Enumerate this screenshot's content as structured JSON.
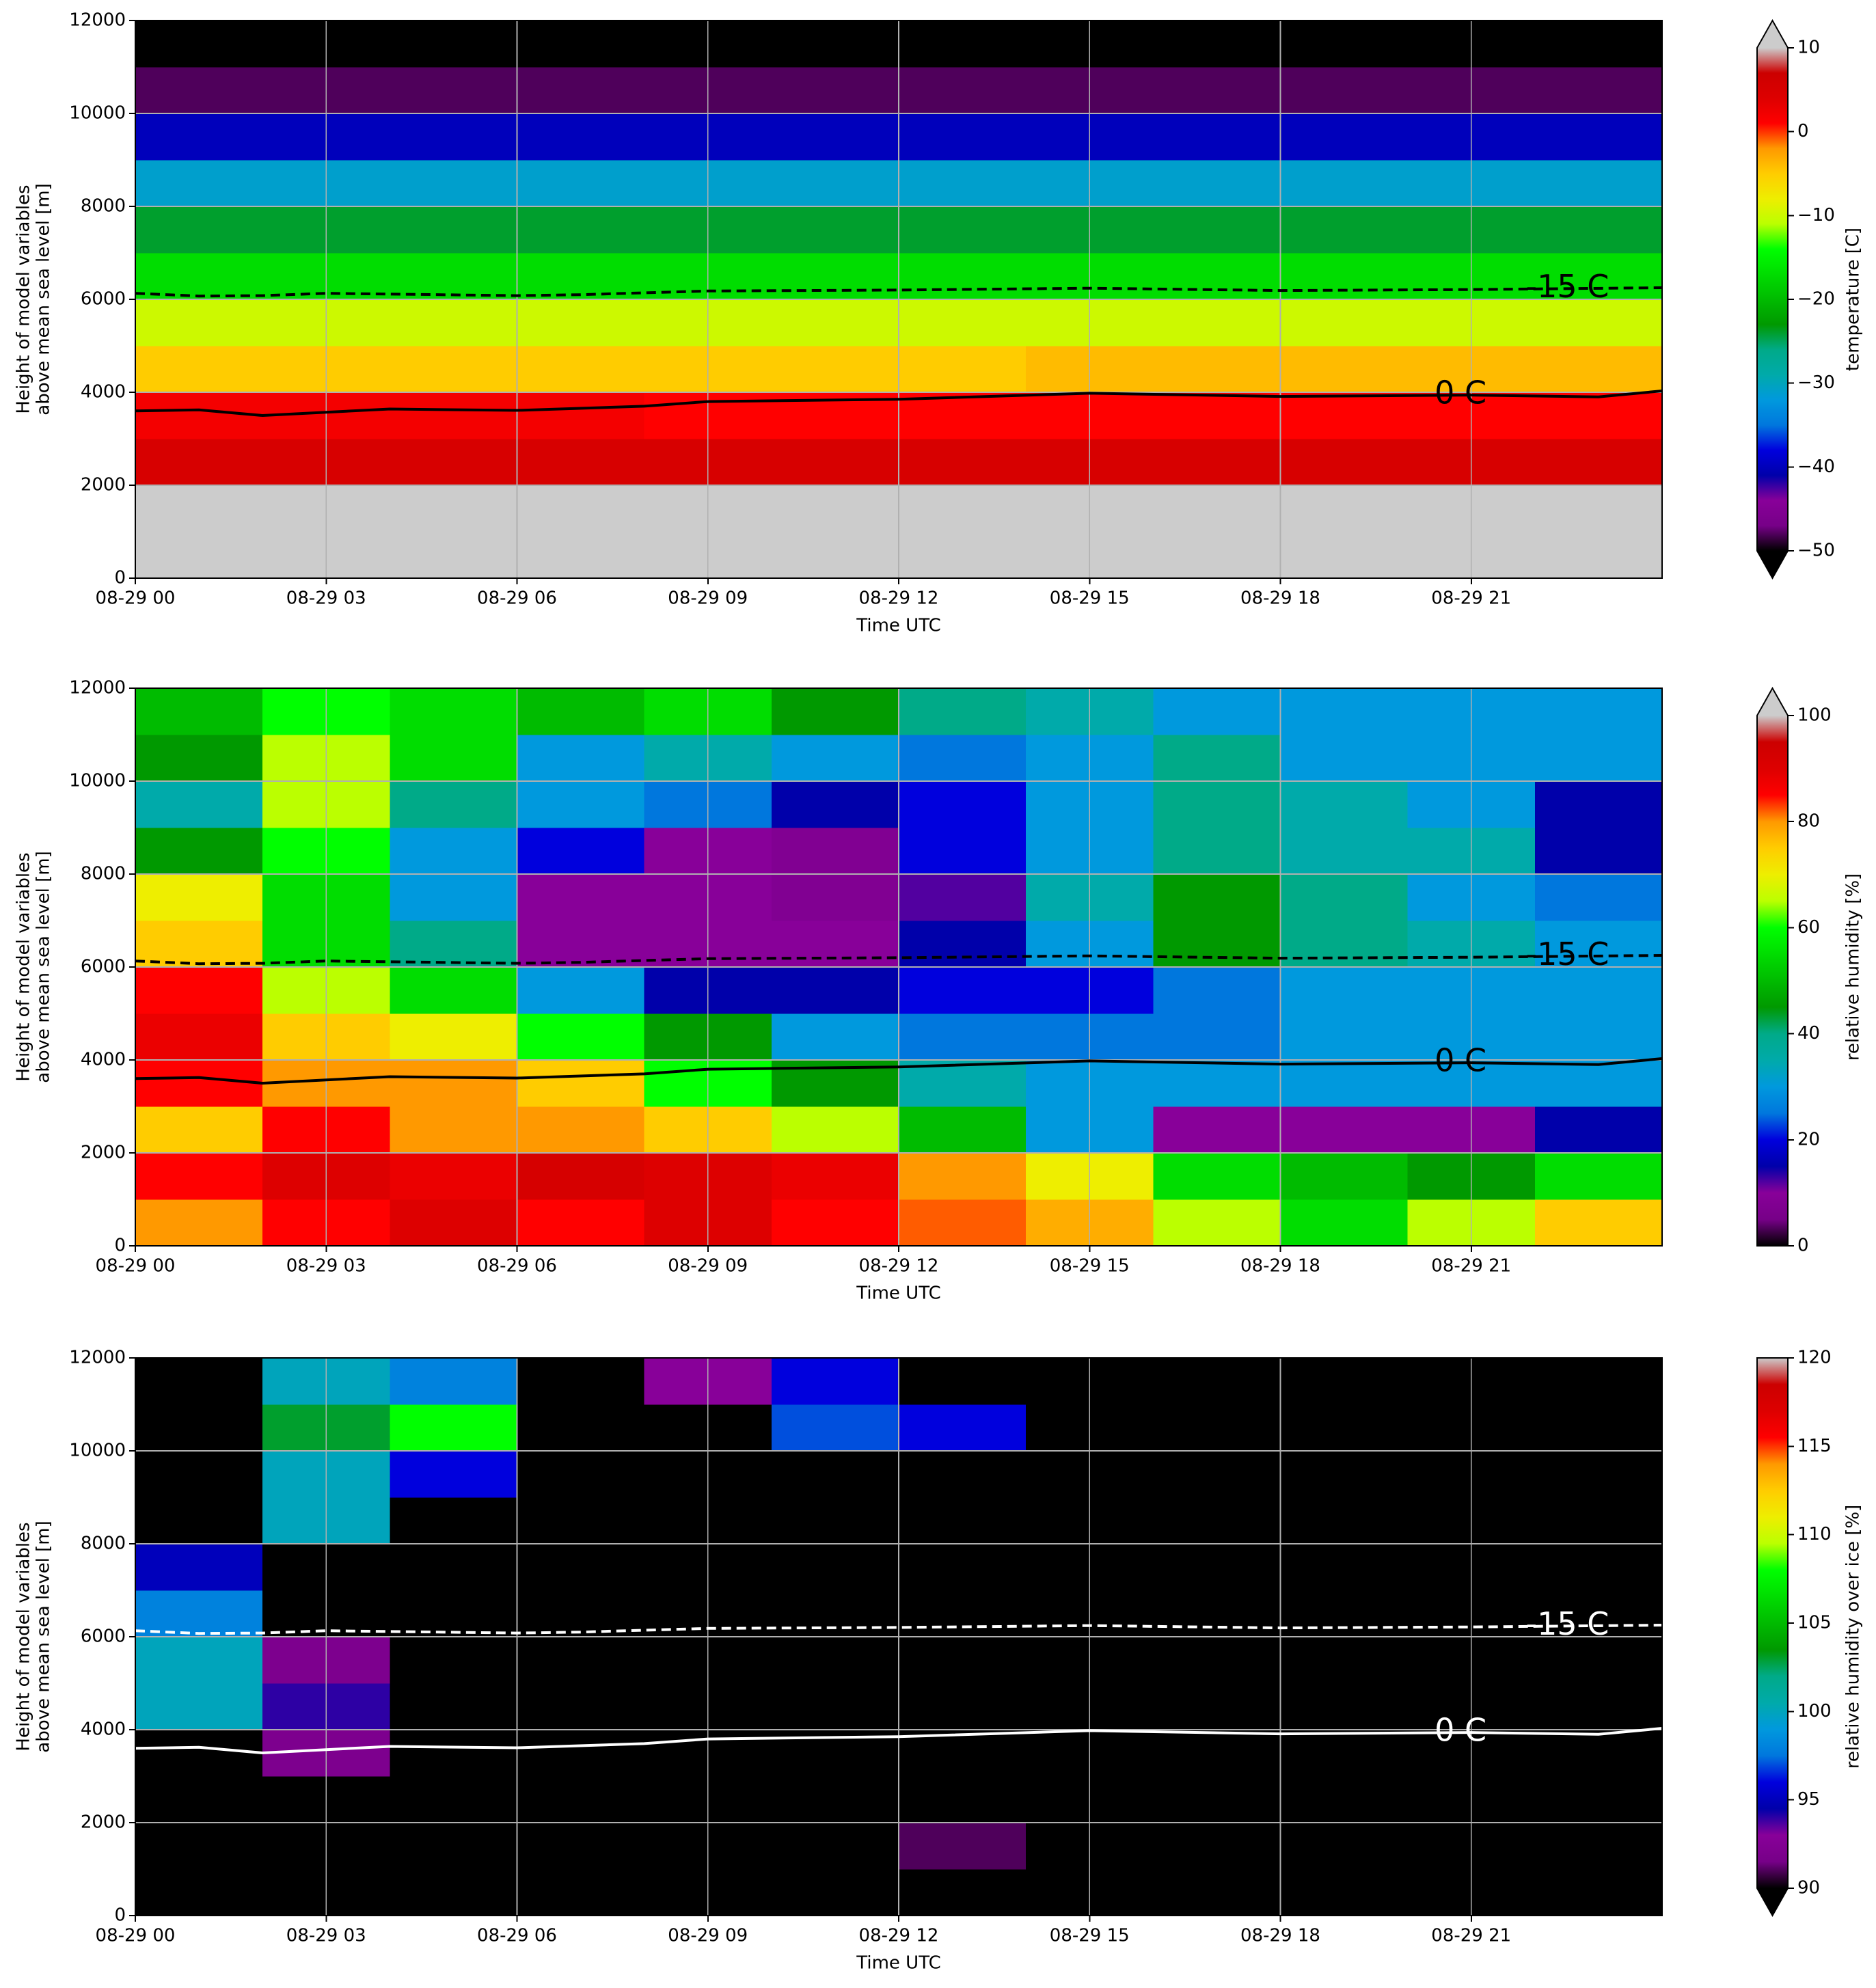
{
  "chart_data": [
    {
      "type": "heatmap",
      "xlim": [
        0,
        24
      ],
      "xticks": [
        {
          "value": 0,
          "label": "08-29 00"
        },
        {
          "value": 3,
          "label": "08-29 03"
        },
        {
          "value": 6,
          "label": "08-29 06"
        },
        {
          "value": 9,
          "label": "08-29 09"
        },
        {
          "value": 12,
          "label": "08-29 12"
        },
        {
          "value": 15,
          "label": "08-29 15"
        },
        {
          "value": 18,
          "label": "08-29 18"
        },
        {
          "value": 21,
          "label": "08-29 21"
        }
      ],
      "xlabel": "Time UTC",
      "ylim": [
        0,
        12000
      ],
      "yticks": [
        0,
        2000,
        4000,
        6000,
        8000,
        10000,
        12000
      ],
      "ylabel": [
        "Height of model variables",
        "above mean sea level [m]"
      ],
      "grid": true,
      "x": [
        1,
        3,
        5,
        7,
        9,
        11,
        13,
        15,
        17,
        19,
        21,
        23
      ],
      "y": [
        500,
        1500,
        2500,
        3500,
        4500,
        5500,
        6500,
        7500,
        8500,
        9500,
        10500,
        11500
      ],
      "z": [
        [
          15,
          15,
          15,
          15,
          15,
          15,
          15,
          15,
          15,
          15,
          15,
          15
        ],
        [
          14,
          14,
          14,
          14,
          13,
          12,
          12,
          13,
          14,
          14,
          14,
          13
        ],
        [
          5,
          5,
          5,
          5,
          5,
          5,
          5,
          5,
          5,
          5,
          5,
          5
        ],
        [
          2,
          2,
          2,
          2,
          1,
          1,
          1,
          1,
          1,
          1,
          1,
          1
        ],
        [
          -5,
          -5,
          -5,
          -5,
          -5,
          -5,
          -5,
          -4,
          -4,
          -4,
          -4,
          -4
        ],
        [
          -10,
          -10,
          -10,
          -10,
          -10,
          -10,
          -10,
          -10,
          -10,
          -10,
          -10,
          -10
        ],
        [
          -17,
          -17,
          -17,
          -17,
          -17,
          -17,
          -17,
          -17,
          -17,
          -17,
          -17,
          -17
        ],
        [
          -24,
          -24,
          -24,
          -24,
          -24,
          -24,
          -24,
          -24,
          -24,
          -24,
          -24,
          -24
        ],
        [
          -31,
          -31,
          -31,
          -31,
          -31,
          -31,
          -31,
          -31,
          -31,
          -31,
          -31,
          -31
        ],
        [
          -40,
          -40,
          -40,
          -40,
          -40,
          -40,
          -40,
          -40,
          -40,
          -40,
          -40,
          -40
        ],
        [
          -48,
          -48,
          -48,
          -48,
          -48,
          -48,
          -48,
          -48,
          -48,
          -48,
          -48,
          -48
        ],
        [
          -55,
          -55,
          -55,
          -55,
          -55,
          -55,
          -55,
          -55,
          -55,
          -55,
          -55,
          -55
        ]
      ],
      "colormap": "nipy_spectral",
      "clim": [
        -50,
        10
      ],
      "cticks": [
        {
          "value": -50,
          "label": "−50"
        },
        {
          "value": -40,
          "label": "−40"
        },
        {
          "value": -30,
          "label": "−30"
        },
        {
          "value": -20,
          "label": "−20"
        },
        {
          "value": -10,
          "label": "−10"
        },
        0,
        10
      ],
      "colorbar_label": "temperature [C]",
      "extend": "both",
      "over_color": "#cccccc",
      "under_color": "#000000",
      "contour_color": "#000000",
      "contours": [
        {
          "name": "0 C",
          "style": "solid",
          "x": [
            0,
            1,
            2,
            3,
            4,
            6,
            8,
            9,
            12,
            15,
            18,
            21,
            23,
            24
          ],
          "y": [
            3600,
            3620,
            3500,
            3570,
            3640,
            3610,
            3700,
            3800,
            3850,
            3980,
            3910,
            3940,
            3900,
            4030
          ]
        },
        {
          "name": "-15 C",
          "style": "dashed",
          "x": [
            0,
            1,
            2,
            3,
            6,
            7,
            9,
            12,
            15,
            18,
            21,
            24
          ],
          "y": [
            6130,
            6070,
            6080,
            6130,
            6080,
            6100,
            6180,
            6200,
            6240,
            6190,
            6210,
            6250
          ]
        }
      ]
    },
    {
      "type": "heatmap",
      "xlim": [
        0,
        24
      ],
      "xticks": [
        {
          "value": 0,
          "label": "08-29 00"
        },
        {
          "value": 3,
          "label": "08-29 03"
        },
        {
          "value": 6,
          "label": "08-29 06"
        },
        {
          "value": 9,
          "label": "08-29 09"
        },
        {
          "value": 12,
          "label": "08-29 12"
        },
        {
          "value": 15,
          "label": "08-29 15"
        },
        {
          "value": 18,
          "label": "08-29 18"
        },
        {
          "value": 21,
          "label": "08-29 21"
        }
      ],
      "xlabel": "Time UTC",
      "ylim": [
        0,
        12000
      ],
      "yticks": [
        0,
        2000,
        4000,
        6000,
        8000,
        10000,
        12000
      ],
      "ylabel": [
        "Height of model variables",
        "above mean sea level [m]"
      ],
      "grid": true,
      "x": [
        1,
        3,
        5,
        7,
        9,
        11,
        13,
        15,
        17,
        19,
        21,
        23
      ],
      "y": [
        500,
        1500,
        2500,
        3500,
        4500,
        5500,
        6500,
        7500,
        8500,
        9500,
        10500,
        11500
      ],
      "z": [
        [
          80,
          85,
          90,
          85,
          90,
          85,
          82,
          78,
          65,
          55,
          65,
          75
        ],
        [
          85,
          90,
          88,
          92,
          90,
          88,
          80,
          70,
          55,
          50,
          45,
          55
        ],
        [
          75,
          85,
          80,
          80,
          75,
          65,
          50,
          30,
          10,
          10,
          10,
          15
        ],
        [
          85,
          80,
          80,
          75,
          60,
          45,
          35,
          30,
          30,
          30,
          30,
          30
        ],
        [
          88,
          75,
          70,
          60,
          45,
          30,
          25,
          25,
          25,
          30,
          30,
          30
        ],
        [
          85,
          65,
          55,
          30,
          15,
          15,
          20,
          20,
          25,
          30,
          30,
          30
        ],
        [
          75,
          55,
          40,
          10,
          10,
          10,
          15,
          30,
          45,
          40,
          35,
          30
        ],
        [
          70,
          55,
          30,
          10,
          10,
          8,
          12,
          35,
          45,
          40,
          30,
          25
        ],
        [
          45,
          60,
          30,
          20,
          10,
          8,
          20,
          30,
          40,
          35,
          35,
          15
        ],
        [
          35,
          65,
          40,
          30,
          25,
          15,
          20,
          30,
          40,
          35,
          30,
          15
        ],
        [
          45,
          65,
          55,
          30,
          35,
          30,
          25,
          30,
          40,
          30,
          30,
          30
        ],
        [
          50,
          60,
          55,
          50,
          55,
          45,
          40,
          35,
          30,
          30,
          30,
          30
        ]
      ],
      "colormap": "nipy_spectral",
      "clim": [
        0,
        100
      ],
      "cticks": [
        0,
        20,
        40,
        60,
        80,
        100
      ],
      "colorbar_label": "relative humidity [%]",
      "extend": "max",
      "over_color": "#cccccc",
      "under_color": "#000000",
      "contour_color": "#000000",
      "contours": [
        {
          "name": "0 C",
          "style": "solid",
          "x": [
            0,
            1,
            2,
            3,
            4,
            6,
            8,
            9,
            12,
            15,
            18,
            21,
            23,
            24
          ],
          "y": [
            3600,
            3620,
            3500,
            3570,
            3640,
            3610,
            3700,
            3800,
            3850,
            3980,
            3910,
            3940,
            3900,
            4030
          ]
        },
        {
          "name": "-15 C",
          "style": "dashed",
          "x": [
            0,
            1,
            2,
            3,
            6,
            7,
            9,
            12,
            15,
            18,
            21,
            24
          ],
          "y": [
            6130,
            6070,
            6080,
            6130,
            6080,
            6100,
            6180,
            6200,
            6240,
            6190,
            6210,
            6250
          ]
        }
      ]
    },
    {
      "type": "heatmap",
      "xlim": [
        0,
        24
      ],
      "xticks": [
        {
          "value": 0,
          "label": "08-29 00"
        },
        {
          "value": 3,
          "label": "08-29 03"
        },
        {
          "value": 6,
          "label": "08-29 06"
        },
        {
          "value": 9,
          "label": "08-29 09"
        },
        {
          "value": 12,
          "label": "08-29 12"
        },
        {
          "value": 15,
          "label": "08-29 15"
        },
        {
          "value": 18,
          "label": "08-29 18"
        },
        {
          "value": 21,
          "label": "08-29 21"
        }
      ],
      "xlabel": "Time UTC",
      "ylim": [
        0,
        12000
      ],
      "yticks": [
        0,
        2000,
        4000,
        6000,
        8000,
        10000,
        12000
      ],
      "ylabel": [
        "Height of model variables",
        "above mean sea level [m]"
      ],
      "grid": true,
      "x": [
        1,
        3,
        5,
        7,
        9,
        11,
        13,
        15,
        17,
        19,
        21,
        23
      ],
      "y": [
        500,
        1500,
        2500,
        3500,
        4500,
        5500,
        6500,
        7500,
        8500,
        9500,
        10500,
        11500
      ],
      "z": [
        [
          80,
          80,
          80,
          80,
          80,
          80,
          80,
          80,
          80,
          80,
          80,
          80
        ],
        [
          80,
          80,
          80,
          80,
          80,
          80,
          91,
          80,
          80,
          80,
          80,
          80
        ],
        [
          80,
          80,
          80,
          80,
          80,
          80,
          80,
          80,
          80,
          80,
          80,
          80
        ],
        [
          80,
          92,
          80,
          80,
          80,
          80,
          80,
          80,
          80,
          80,
          80,
          80
        ],
        [
          100,
          94,
          80,
          80,
          80,
          80,
          80,
          80,
          80,
          80,
          80,
          80
        ],
        [
          100,
          92,
          80,
          80,
          80,
          80,
          80,
          80,
          80,
          80,
          80,
          80
        ],
        [
          98,
          80,
          80,
          80,
          80,
          80,
          80,
          80,
          80,
          80,
          80,
          80
        ],
        [
          95,
          80,
          80,
          80,
          80,
          80,
          80,
          80,
          80,
          80,
          80,
          80
        ],
        [
          80,
          100,
          80,
          80,
          80,
          80,
          80,
          80,
          80,
          80,
          80,
          80
        ],
        [
          80,
          100,
          96,
          80,
          80,
          80,
          80,
          80,
          80,
          80,
          80,
          80
        ],
        [
          80,
          103,
          108,
          80,
          80,
          97,
          96,
          80,
          80,
          80,
          80,
          80
        ],
        [
          80,
          100,
          98,
          80,
          93,
          96,
          80,
          80,
          80,
          80,
          80,
          80
        ]
      ],
      "colormap": "nipy_spectral",
      "clim": [
        90,
        120
      ],
      "cticks": [
        90,
        95,
        100,
        105,
        110,
        115,
        120
      ],
      "colorbar_label": "relative humidity over ice [%]",
      "extend": "min",
      "over_color": "#cccccc",
      "under_color": "#000000",
      "contour_color": "#ffffff",
      "contours": [
        {
          "name": "0 C",
          "style": "solid",
          "x": [
            0,
            1,
            2,
            3,
            4,
            6,
            8,
            9,
            12,
            15,
            18,
            21,
            23,
            24
          ],
          "y": [
            3600,
            3620,
            3500,
            3570,
            3640,
            3610,
            3700,
            3800,
            3850,
            3980,
            3910,
            3940,
            3900,
            4030
          ]
        },
        {
          "name": "-15 C",
          "style": "dashed",
          "x": [
            0,
            1,
            2,
            3,
            6,
            7,
            9,
            12,
            15,
            18,
            21,
            24
          ],
          "y": [
            6130,
            6070,
            6080,
            6130,
            6080,
            6100,
            6180,
            6200,
            6240,
            6190,
            6210,
            6250
          ]
        }
      ]
    }
  ]
}
